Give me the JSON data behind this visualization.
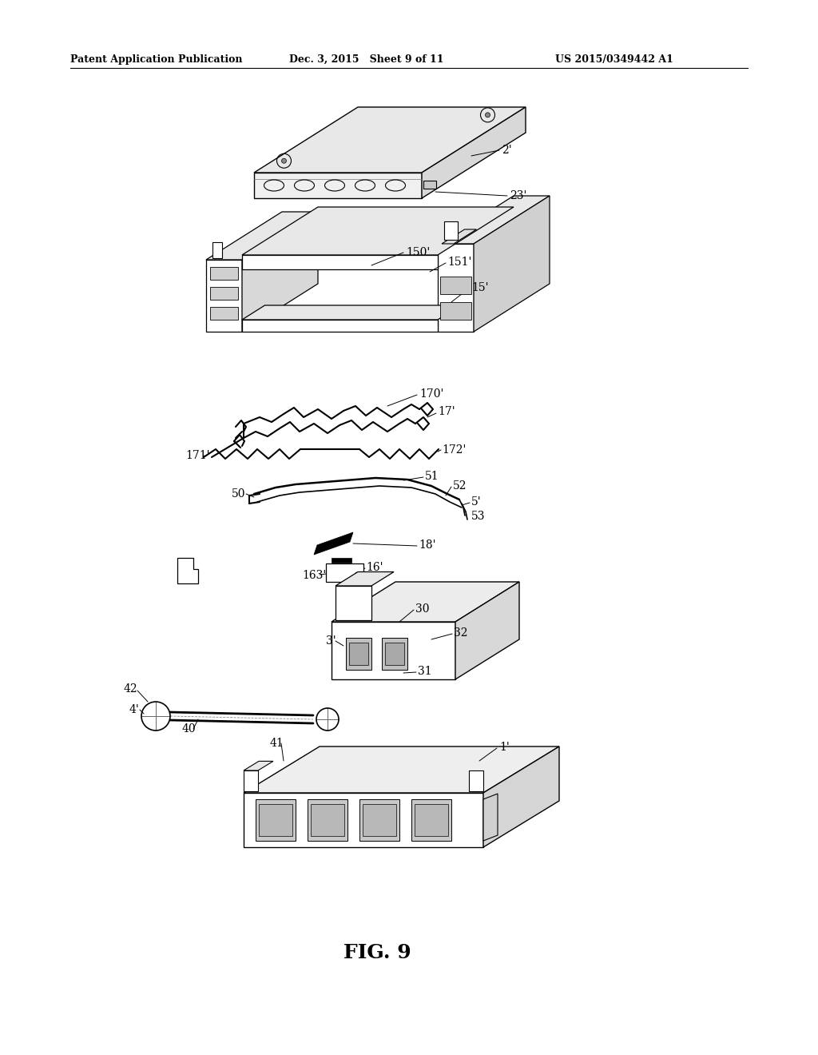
{
  "background_color": "#ffffff",
  "header_left": "Patent Application Publication",
  "header_mid": "Dec. 3, 2015   Sheet 9 of 11",
  "header_right": "US 2015/0349442 A1",
  "figure_label": "FIG. 9"
}
